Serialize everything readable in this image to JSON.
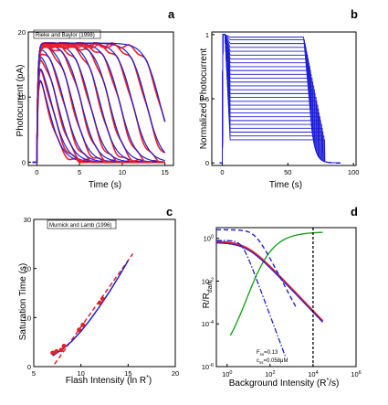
{
  "chart_data": [
    {
      "panel": "a",
      "type": "line",
      "annotation": "Rieke and Baylor (1998)",
      "xlabel": "Time (s)",
      "ylabel": "Photocurrent (pA)",
      "xlim": [
        -1,
        16
      ],
      "ylim": [
        -0.5,
        20
      ],
      "xticks": [
        "0",
        "5",
        "10",
        "15"
      ],
      "yticks": [
        "0",
        "10",
        "20"
      ],
      "saturation_times": [
        0.0,
        0.5,
        1.2,
        2.0,
        3.0,
        4.0,
        5.0,
        6.2,
        7.3,
        8.5,
        10.0,
        11.6,
        13.2
      ],
      "colors": {
        "model": "#1f1fd6",
        "data": "#e8202a"
      }
    },
    {
      "panel": "b",
      "type": "line",
      "xlabel": "Time (s)",
      "ylabel": "Normalized Photocurrent",
      "xlim": [
        -8,
        102
      ],
      "ylim": [
        -0.02,
        1.02
      ],
      "xticks": [
        "0",
        "50",
        "100"
      ],
      "yticks": [
        "0",
        "0.5",
        "1"
      ],
      "recovery_levels": [
        0.98,
        0.96,
        0.93,
        0.9,
        0.87,
        0.84,
        0.81,
        0.78,
        0.75,
        0.72,
        0.69,
        0.66,
        0.63,
        0.6,
        0.57,
        0.54,
        0.51,
        0.48,
        0.45,
        0.42,
        0.39,
        0.36,
        0.33,
        0.3,
        0.27,
        0.24,
        0.21,
        0.18
      ],
      "colors": {
        "model": "#1f1fd6"
      }
    },
    {
      "panel": "c",
      "type": "scatter",
      "annotation": "Murnick and Lamb (1996)",
      "xlabel": "Flash Intensity (ln R*)",
      "ylabel": "Saturation Time (s)",
      "xlim": [
        5,
        20
      ],
      "ylim": [
        0,
        30
      ],
      "xticks": [
        "5",
        "10",
        "15",
        "20"
      ],
      "yticks": [
        "0",
        "10",
        "20",
        "30"
      ],
      "points": [
        {
          "x": 7.0,
          "y": 2.8
        },
        {
          "x": 7.4,
          "y": 3.1
        },
        {
          "x": 7.9,
          "y": 3.4
        },
        {
          "x": 8.2,
          "y": 4.2
        },
        {
          "x": 9.8,
          "y": 7.5
        },
        {
          "x": 10.2,
          "y": 8.5
        },
        {
          "x": 12.0,
          "y": 13.0
        },
        {
          "x": 12.3,
          "y": 13.8
        }
      ],
      "fit_data": [
        {
          "x": 7.2,
          "y": 0.5
        },
        {
          "x": 15.5,
          "y": 23.0
        }
      ],
      "fit_model": [
        [
          7.0,
          2.2
        ],
        [
          8.0,
          3.5
        ],
        [
          9.0,
          5.1
        ],
        [
          10.0,
          7.2
        ],
        [
          11.0,
          9.6
        ],
        [
          12.0,
          12.3
        ],
        [
          13.0,
          15.2
        ],
        [
          14.0,
          18.3
        ],
        [
          15.0,
          21.6
        ]
      ],
      "colors": {
        "fit": "#e8202a",
        "model": "#1f1fd6",
        "point": "#e8202a"
      }
    },
    {
      "panel": "d",
      "type": "line",
      "xlabel": "Background Intensity (R*/s)",
      "ylabel": "R/R_dark",
      "xscale": "log",
      "yscale": "log",
      "xlim": [
        -0.5,
        6
      ],
      "ylim": [
        -6,
        0.5
      ],
      "xticks": [
        "10^0",
        "10^2",
        "10^4",
        "10^6"
      ],
      "yticks": [
        "10^-6",
        "10^-4",
        "10^-2",
        "10^0"
      ],
      "vline_x_log": 4.0,
      "annotations": [
        "F_ss=0.13",
        "c_ss=0.058μM"
      ],
      "colors": {
        "red": "#e8202a",
        "blue": "#1f1fd6",
        "green": "#1aa51a",
        "black": "#000000"
      }
    }
  ],
  "labels": {
    "a": "a",
    "b": "b",
    "c": "c",
    "d": "d",
    "a_annot": "Rieke and Baylor (1998)",
    "c_annot": "Murnick and Lamb (1996)",
    "a_xlabel": "Time (s)",
    "a_ylabel": "Photocurrent (pA)",
    "b_xlabel": "Time (s)",
    "b_ylabel": "Normalized Photocurrent",
    "c_xlabel": "Flash Intensity (ln R",
    "c_xlabel_sup": "*",
    "c_xlabel_end": ")",
    "c_ylabel": "Saturation Time (s)",
    "d_xlabel": "Background Intensity (R",
    "d_xlabel_sup": "*",
    "d_xlabel_end": "/s)",
    "d_ylabel": "R/R",
    "d_ylabel_sub": "dark",
    "d_f": "F",
    "d_f_sub": "ss",
    "d_f_val": "=0.13",
    "d_c": "c",
    "d_c_sub": "ss",
    "d_c_val": "=0.058μM"
  }
}
